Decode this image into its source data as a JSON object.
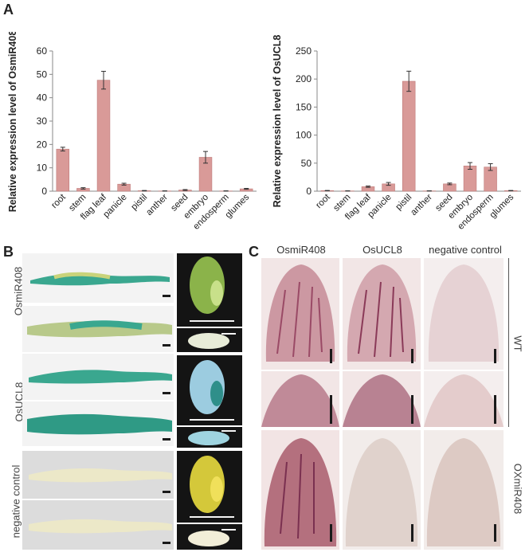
{
  "panels": {
    "a": {
      "letter": "A"
    },
    "b": {
      "letter": "B"
    },
    "c": {
      "letter": "C"
    }
  },
  "chart_data": [
    {
      "type": "bar",
      "ylabel": "Relative expression level of OsmiR408",
      "categories": [
        "root",
        "stem",
        "flag leaf",
        "panicle",
        "pistil",
        "anther",
        "seed",
        "embryo",
        "endosperm",
        "glumes"
      ],
      "values": [
        18,
        1.2,
        47.5,
        3,
        0.2,
        0.1,
        0.5,
        14.5,
        0.1,
        1
      ],
      "errors": [
        0.8,
        0.3,
        3.8,
        0.4,
        0.1,
        0.05,
        0.2,
        2.5,
        0.05,
        0.2
      ],
      "ylim": [
        0,
        60
      ],
      "yticks": [
        0,
        10,
        20,
        30,
        40,
        50,
        60
      ],
      "bar_color": "#d99a98"
    },
    {
      "type": "bar",
      "ylabel": "Relative expression level of OsUCL8",
      "categories": [
        "root",
        "stem",
        "flag leaf",
        "panicle",
        "pistil",
        "anther",
        "seed",
        "embryo",
        "endosperm",
        "glumes"
      ],
      "values": [
        1,
        0.5,
        8,
        13,
        196,
        0.5,
        13,
        45,
        43,
        1
      ],
      "errors": [
        0.3,
        0.2,
        1.2,
        2.5,
        18,
        0.2,
        1.5,
        6,
        6,
        0.3
      ],
      "ylim": [
        0,
        250
      ],
      "yticks": [
        0,
        50,
        100,
        150,
        200,
        250
      ],
      "bar_color": "#d99a98"
    }
  ],
  "panel_b": {
    "row_labels": [
      "OsmiR408",
      "OsUCL8",
      "negative control"
    ]
  },
  "panel_c": {
    "col_titles": [
      "OsmiR408",
      "OsUCL8",
      "negative control"
    ],
    "row_labels": [
      "WT",
      "OXmiR408"
    ]
  },
  "colors": {
    "gus_blue": "#3aa78f",
    "pink_stain": "#c8909a",
    "bar": "#d99a98"
  }
}
